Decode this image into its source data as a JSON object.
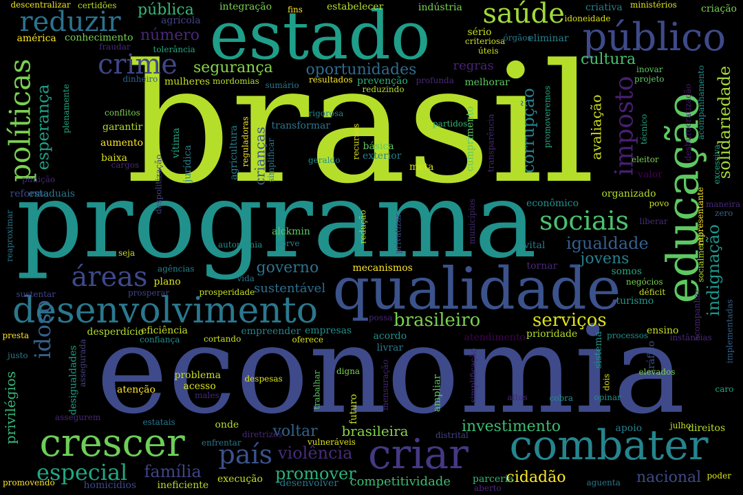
{
  "words": [
    {
      "text": "brasil",
      "color": "#b5de2b"
    },
    {
      "text": "programa",
      "color": "#21918c"
    },
    {
      "text": "economia",
      "color": "#3e4a89"
    },
    {
      "text": "estado",
      "color": "#1f9e89"
    },
    {
      "text": "qualidade",
      "color": "#3b528b"
    },
    {
      "text": "educação",
      "color": "#5ec962"
    },
    {
      "text": "público",
      "color": "#3e4a89"
    },
    {
      "text": "combater",
      "color": "#25858e"
    },
    {
      "text": "criar",
      "color": "#443983"
    },
    {
      "text": "crescer",
      "color": "#6ece58"
    },
    {
      "text": "desenvolvimento",
      "color": "#2a788e"
    },
    {
      "text": "saúde",
      "color": "#a0da39"
    },
    {
      "text": "reduzir",
      "color": "#2c728e"
    },
    {
      "text": "crime",
      "color": "#404688"
    },
    {
      "text": "políticas",
      "color": "#7ad151"
    },
    {
      "text": "imposto",
      "color": "#481f70"
    },
    {
      "text": "áreas",
      "color": "#3e4989"
    },
    {
      "text": "país",
      "color": "#3b528b"
    },
    {
      "text": "sociais",
      "color": "#4ac16d"
    },
    {
      "text": "especial",
      "color": "#22a884"
    },
    {
      "text": "idoso",
      "color": "#34618d"
    },
    {
      "text": "esperança",
      "color": "#1fa187"
    },
    {
      "text": "corrupção",
      "color": "#26828e"
    },
    {
      "text": "serviços",
      "color": "#dde318"
    },
    {
      "text": "brasileiro",
      "color": "#7ad151"
    },
    {
      "text": "solidariedade",
      "color": "#a5db36"
    },
    {
      "text": "indignação",
      "color": "#1f988b"
    },
    {
      "text": "igualdade",
      "color": "#355f8d"
    },
    {
      "text": "violência",
      "color": "#472c7a"
    },
    {
      "text": "família",
      "color": "#414487"
    },
    {
      "text": "promover",
      "color": "#2db27d"
    },
    {
      "text": "investimento",
      "color": "#3dbc74"
    },
    {
      "text": "oportunidades",
      "color": "#2f6c8e"
    },
    {
      "text": "segurança",
      "color": "#86d549"
    },
    {
      "text": "voltar",
      "color": "#33638d"
    },
    {
      "text": "governo",
      "color": "#2c728e"
    },
    {
      "text": "cultura",
      "color": "#48c16e"
    },
    {
      "text": "cidadão",
      "color": "#fde725"
    },
    {
      "text": "nacional",
      "color": "#3e4a89"
    },
    {
      "text": "jovens",
      "color": "#27808e"
    },
    {
      "text": "avaliação",
      "color": "#d2e21b"
    },
    {
      "text": "privilégios",
      "color": "#35b779"
    },
    {
      "text": "número",
      "color": "#482878"
    },
    {
      "text": "pública",
      "color": "#37b878"
    },
    {
      "text": "brasileira",
      "color": "#86d549"
    },
    {
      "text": "crianças",
      "color": "#39568c"
    },
    {
      "text": "sustentável",
      "color": "#2d708e"
    },
    {
      "text": "regras",
      "color": "#482374"
    },
    {
      "text": "competitividade",
      "color": "#40bd72"
    },
    {
      "text": "desigualdades",
      "color": "#1fa187"
    },
    {
      "text": "mecanismos",
      "color": "#fde725"
    },
    {
      "text": "atendimento",
      "color": "#440154"
    },
    {
      "text": "criativa",
      "color": "#26828e"
    },
    {
      "text": "descentralizar",
      "color": "#f1e51d"
    },
    {
      "text": "certidões",
      "color": "#b5de2b"
    },
    {
      "text": "integração",
      "color": "#7ad151"
    },
    {
      "text": "fins",
      "color": "#fde725"
    },
    {
      "text": "estabelecer",
      "color": "#b5de2b"
    },
    {
      "text": "indústria",
      "color": "#7ad151"
    },
    {
      "text": "idoneidade",
      "color": "#dde318"
    },
    {
      "text": "ministérios",
      "color": "#dde318"
    },
    {
      "text": "criação",
      "color": "#7ad151"
    },
    {
      "text": "agrícola",
      "color": "#414487"
    },
    {
      "text": "américa",
      "color": "#fde725"
    },
    {
      "text": "conhecimento",
      "color": "#7ad151"
    },
    {
      "text": "fraudar",
      "color": "#482878"
    },
    {
      "text": "tolerância",
      "color": "#22a884"
    },
    {
      "text": "sério",
      "color": "#c8e020"
    },
    {
      "text": "criteriosa",
      "color": "#c8e020"
    },
    {
      "text": "úteis",
      "color": "#c8e020"
    },
    {
      "text": "órgãos",
      "color": "#2a788e"
    },
    {
      "text": "eliminar",
      "color": "#26828e"
    },
    {
      "text": "dinheiro",
      "color": "#34618d"
    },
    {
      "text": "mulheres",
      "color": "#c8e020"
    },
    {
      "text": "mordomias",
      "color": "#b5de2b"
    },
    {
      "text": "sumário",
      "color": "#2a788e"
    },
    {
      "text": "resultados",
      "color": "#fde725"
    },
    {
      "text": "prevenção",
      "color": "#2db27d"
    },
    {
      "text": "profunda",
      "color": "#482878"
    },
    {
      "text": "melhorar",
      "color": "#5ec962"
    },
    {
      "text": "inovar",
      "color": "#5ec962"
    },
    {
      "text": "projeto",
      "color": "#5ec962"
    },
    {
      "text": "acompanhamento",
      "color": "#21918c"
    },
    {
      "text": "plenamente",
      "color": "#22a884"
    },
    {
      "text": "conflitos",
      "color": "#7ad151"
    },
    {
      "text": "rigorosa",
      "color": "#26828e"
    },
    {
      "text": "reduzindo",
      "color": "#b5de2b"
    },
    {
      "text": "promoveremos",
      "color": "#22a884"
    },
    {
      "text": "garantir",
      "color": "#b5de2b"
    },
    {
      "text": "transformar",
      "color": "#2a788e"
    },
    {
      "text": "recursos",
      "color": "#dde318"
    },
    {
      "text": "partidos",
      "color": "#35b779"
    },
    {
      "text": "transparência",
      "color": "#482878"
    },
    {
      "text": "técnico",
      "color": "#22a884"
    },
    {
      "text": "desburocratização",
      "color": "#481a6c"
    },
    {
      "text": "aumento",
      "color": "#fde725"
    },
    {
      "text": "vítima",
      "color": "#22a884"
    },
    {
      "text": "básica",
      "color": "#5ec962"
    },
    {
      "text": "exterior",
      "color": "#26828e"
    },
    {
      "text": "cumprimento",
      "color": "#5ec962"
    },
    {
      "text": "baixa",
      "color": "#dde318"
    },
    {
      "text": "cargos",
      "color": "#482878"
    },
    {
      "text": "despolitização",
      "color": "#414487"
    },
    {
      "text": "jurídica",
      "color": "#26828e"
    },
    {
      "text": "agricultura",
      "color": "#26828e"
    },
    {
      "text": "reguladoras",
      "color": "#fde725"
    },
    {
      "text": "simplificar",
      "color": "#2a788e"
    },
    {
      "text": "geraldo",
      "color": "#21918c"
    },
    {
      "text": "meta",
      "color": "#dde318"
    },
    {
      "text": "eleitor",
      "color": "#7ad151"
    },
    {
      "text": "valor",
      "color": "#440154"
    },
    {
      "text": "excessiva",
      "color": "#22a884"
    },
    {
      "text": "punição",
      "color": "#482878"
    },
    {
      "text": "reforma",
      "color": "#3e4a89"
    },
    {
      "text": "estaduais",
      "color": "#2a788e"
    },
    {
      "text": "organizado",
      "color": "#b5de2b"
    },
    {
      "text": "povo",
      "color": "#c8e020"
    },
    {
      "text": "representante",
      "color": "#fde725"
    },
    {
      "text": "maneira",
      "color": "#482878"
    },
    {
      "text": "zero",
      "color": "#34618d"
    },
    {
      "text": "econômico",
      "color": "#21918c"
    },
    {
      "text": "liberar",
      "color": "#472c7a"
    },
    {
      "text": "reaproximar",
      "color": "#2a788e"
    },
    {
      "text": "alckmin",
      "color": "#5ec962"
    },
    {
      "text": "redução",
      "color": "#b5de2b"
    },
    {
      "text": "privatizar",
      "color": "#3b528b"
    },
    {
      "text": "municípios",
      "color": "#482878"
    },
    {
      "text": "socialmente",
      "color": "#b5de2b"
    },
    {
      "text": "autonomia",
      "color": "#21918c"
    },
    {
      "text": "sorve",
      "color": "#26828e"
    },
    {
      "text": "seja",
      "color": "#c8e020"
    },
    {
      "text": "vital",
      "color": "#2a788e"
    },
    {
      "text": "agências",
      "color": "#26828e"
    },
    {
      "text": "tornar",
      "color": "#482878"
    },
    {
      "text": "somos",
      "color": "#22a884"
    },
    {
      "text": "vida",
      "color": "#2a788e"
    },
    {
      "text": "plano",
      "color": "#dde318"
    },
    {
      "text": "negócios",
      "color": "#7ad151"
    },
    {
      "text": "déficit",
      "color": "#c8e020"
    },
    {
      "text": "sustentar",
      "color": "#414487"
    },
    {
      "text": "prosperar",
      "color": "#414487"
    },
    {
      "text": "prosperidade",
      "color": "#c8e020"
    },
    {
      "text": "turismo",
      "color": "#1f988b"
    },
    {
      "text": "acompanhar",
      "color": "#482878"
    },
    {
      "text": "possa",
      "color": "#482878"
    },
    {
      "text": "eficiência",
      "color": "#c8e020"
    },
    {
      "text": "desperdício",
      "color": "#b5de2b"
    },
    {
      "text": "confiança",
      "color": "#21918c"
    },
    {
      "text": "cortando",
      "color": "#c8e020"
    },
    {
      "text": "empreender",
      "color": "#26828e"
    },
    {
      "text": "empresas",
      "color": "#21918c"
    },
    {
      "text": "oferece",
      "color": "#dde318"
    },
    {
      "text": "acordo",
      "color": "#21918c"
    },
    {
      "text": "prioridade",
      "color": "#b5de2b"
    },
    {
      "text": "processos",
      "color": "#21918c"
    },
    {
      "text": "ensino",
      "color": "#c8e020"
    },
    {
      "text": "instâncias",
      "color": "#482878"
    },
    {
      "text": "implementadas",
      "color": "#34618d"
    },
    {
      "text": "presta",
      "color": "#fde725"
    },
    {
      "text": "justo",
      "color": "#2a788e"
    },
    {
      "text": "assegurada",
      "color": "#414487"
    },
    {
      "text": "livrar",
      "color": "#2a788e"
    },
    {
      "text": "digna",
      "color": "#7ad151"
    },
    {
      "text": "mensuração",
      "color": "#482878"
    },
    {
      "text": "simplificação",
      "color": "#472c7a"
    },
    {
      "text": "sistema",
      "color": "#21918c"
    },
    {
      "text": "dois",
      "color": "#dde318"
    },
    {
      "text": "tráfico",
      "color": "#3b528b"
    },
    {
      "text": "elevados",
      "color": "#7ad151"
    },
    {
      "text": "problema",
      "color": "#c8e020"
    },
    {
      "text": "acesso",
      "color": "#dde318"
    },
    {
      "text": "males",
      "color": "#482878"
    },
    {
      "text": "despesas",
      "color": "#dde318"
    },
    {
      "text": "trabalhar",
      "color": "#5ec962"
    },
    {
      "text": "ampliar",
      "color": "#5ec962"
    },
    {
      "text": "altos",
      "color": "#482878"
    },
    {
      "text": "cobra",
      "color": "#21918c"
    },
    {
      "text": "opinar",
      "color": "#21918c"
    },
    {
      "text": "caro",
      "color": "#22a884"
    },
    {
      "text": "atenção",
      "color": "#fde725"
    },
    {
      "text": "futuro",
      "color": "#c8e020"
    },
    {
      "text": "assegurem",
      "color": "#482878"
    },
    {
      "text": "estatais",
      "color": "#2a788e"
    },
    {
      "text": "onde",
      "color": "#b5de2b"
    },
    {
      "text": "diretrizes",
      "color": "#482878"
    },
    {
      "text": "enfrentar",
      "color": "#2a788e"
    },
    {
      "text": "vulneráveis",
      "color": "#dde318"
    },
    {
      "text": "distrital",
      "color": "#414487"
    },
    {
      "text": "apoio",
      "color": "#26828e"
    },
    {
      "text": "julho",
      "color": "#c8e020"
    },
    {
      "text": "direitos",
      "color": "#b5de2b"
    },
    {
      "text": "promovendo",
      "color": "#fde725"
    },
    {
      "text": "homicídios",
      "color": "#3e4a89"
    },
    {
      "text": "ineficiente",
      "color": "#b5de2b"
    },
    {
      "text": "execução",
      "color": "#c8e020"
    },
    {
      "text": "desenvolver",
      "color": "#2a788e"
    },
    {
      "text": "parceria",
      "color": "#35b779"
    },
    {
      "text": "aberto",
      "color": "#482878"
    },
    {
      "text": "aguenta",
      "color": "#2a788e"
    },
    {
      "text": "poder",
      "color": "#dde318"
    }
  ]
}
